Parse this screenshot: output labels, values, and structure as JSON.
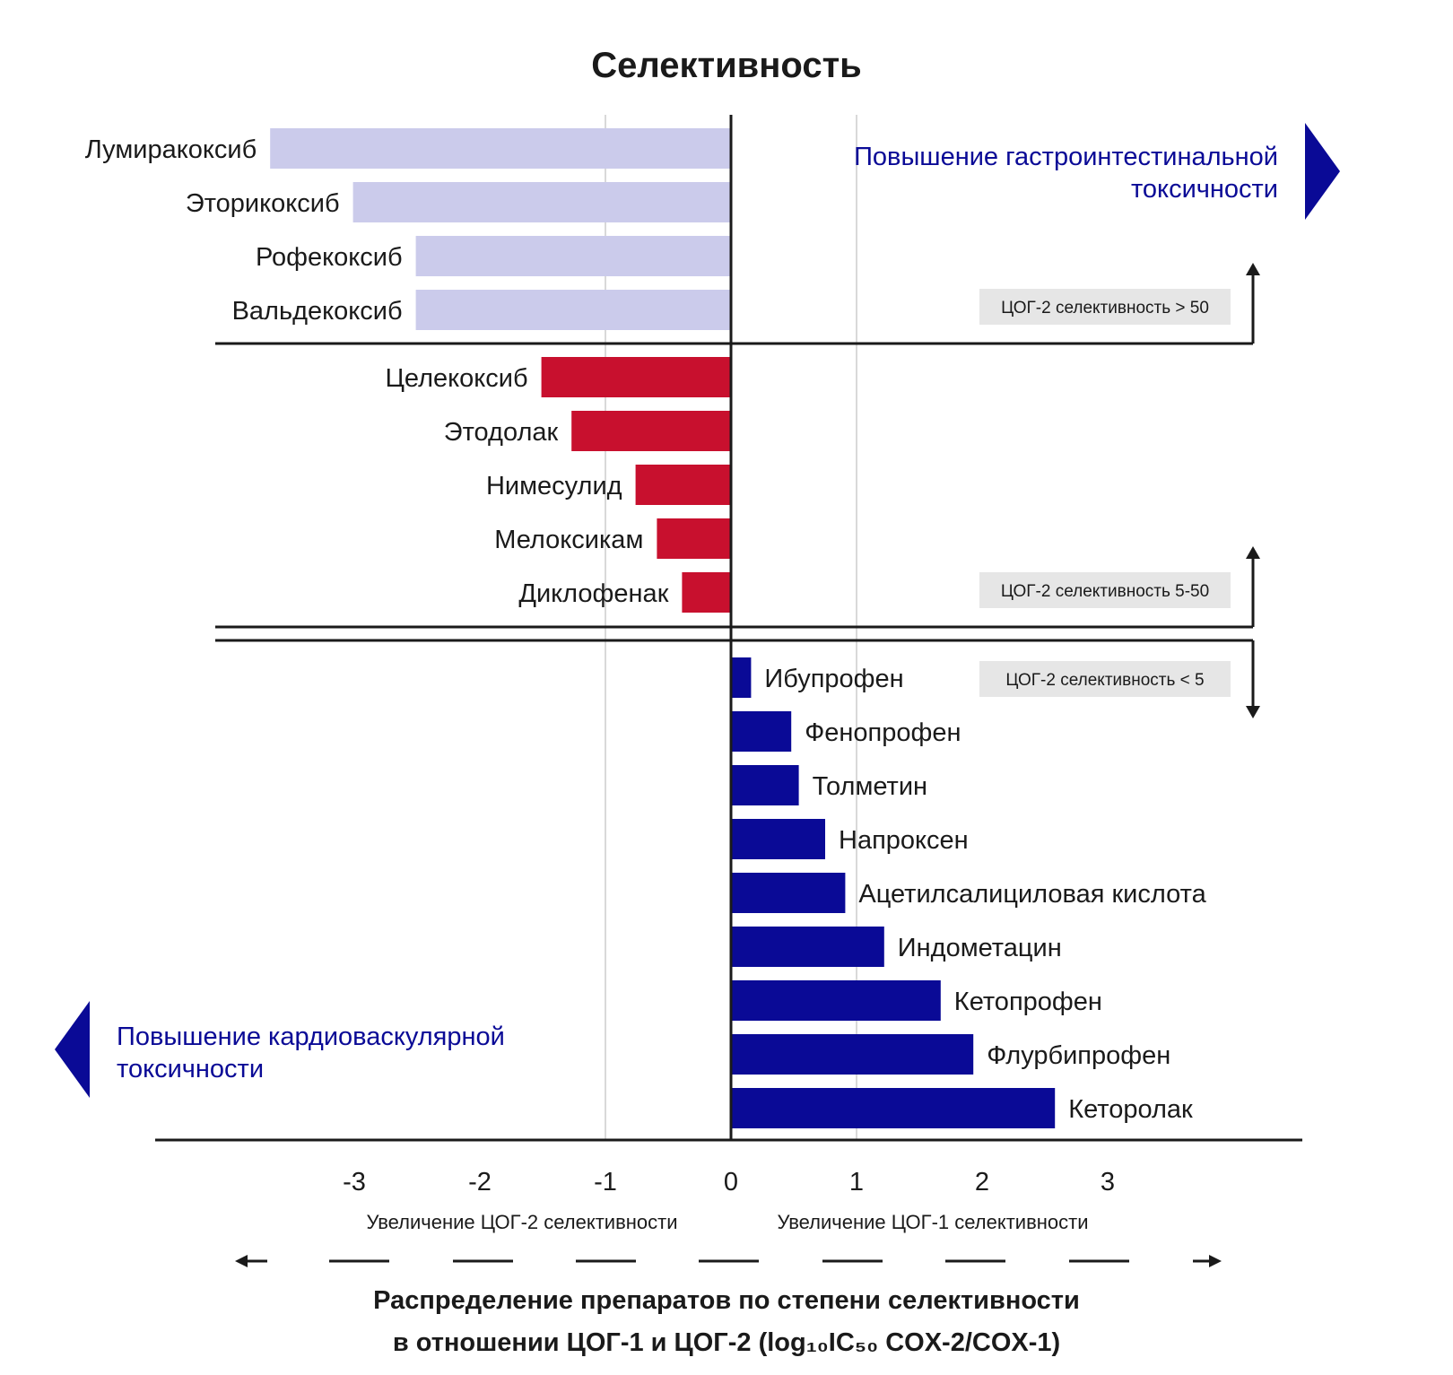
{
  "chart_data": {
    "type": "bar",
    "orientation": "horizontal",
    "title": "Селективность",
    "xlabel_lines": [
      "Распределение препаратов по степени селективности",
      "в отношении ЦОГ-1 и ЦОГ-2 (log₁₀IC₅₀ COX-2/COX-1)"
    ],
    "xlim": [
      -4.5,
      4.5
    ],
    "xticks": [
      -3,
      -2,
      -1,
      0,
      1,
      2,
      3
    ],
    "xtick_labels": [
      "-3",
      "-2",
      "-1",
      "0",
      "1",
      "2",
      "3"
    ],
    "grid_x": [
      -1,
      1
    ],
    "direction_labels": {
      "left": "Увеличение ЦОГ-2 селективности",
      "right": "Увеличение ЦОГ-1 селективности"
    },
    "groups": [
      {
        "badge": "ЦОГ-2 селективность > 50",
        "color": "#cbcbeb",
        "categories": [
          "Лумиракоксиб",
          "Эторикоксиб",
          "Рофекоксиб",
          "Вальдекоксиб"
        ],
        "values": [
          -3.67,
          -3.01,
          -2.51,
          -2.51
        ],
        "bracket_arrows": "up"
      },
      {
        "badge": "ЦОГ-2 селективность 5-50",
        "color": "#c8102e",
        "categories": [
          "Целекоксиб",
          "Этодолак",
          "Нимесулид",
          "Мелоксикам",
          "Диклофенак"
        ],
        "values": [
          -1.51,
          -1.27,
          -0.76,
          -0.59,
          -0.39
        ],
        "bracket_arrows": "up"
      },
      {
        "badge": "ЦОГ-2 селективность < 5",
        "color": "#0a0a96",
        "categories": [
          "Ибупрофен",
          "Фенопрофен",
          "Толметин",
          "Напроксен",
          "Ацетилсалициловая кислота",
          "Индометацин",
          "Кетопрофен",
          "Флурбипрофен",
          "Кеторолак"
        ],
        "values": [
          0.16,
          0.48,
          0.54,
          0.75,
          0.91,
          1.22,
          1.67,
          1.93,
          2.58
        ],
        "bracket_arrows": "both"
      }
    ],
    "annotations": {
      "right": {
        "lines": [
          "Повышение гастроинтестинальной",
          "токсичности"
        ],
        "color": "#0a0a96"
      },
      "left": {
        "lines": [
          "Повышение кардиоваскулярной",
          "токсичности"
        ],
        "color": "#0a0a96"
      }
    },
    "badge_bg": "#e6e6e6",
    "text_color": "#1a1a1a",
    "grid_color": "#d9d9d9"
  }
}
